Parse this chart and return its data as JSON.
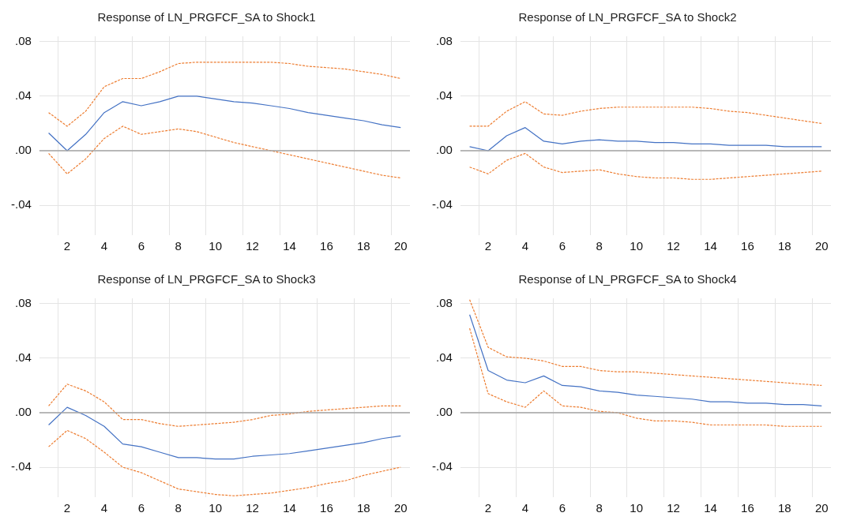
{
  "chart_data": [
    {
      "type": "line",
      "title": "Response of LN_PRGFCF_SA to Shock1",
      "categories": [
        null,
        "2",
        null,
        "4",
        null,
        "6",
        null,
        "8",
        null,
        "10",
        null,
        "12",
        null,
        "14",
        null,
        "16",
        null,
        "18",
        null,
        "20"
      ],
      "ylim": [
        -0.062,
        0.084
      ],
      "yticks": [
        {
          "value": -0.04,
          "label": "-.04"
        },
        {
          "value": 0,
          "label": ".00"
        },
        {
          "value": 0.04,
          "label": ".04"
        },
        {
          "value": 0.08,
          "label": ".08"
        }
      ],
      "grid": true,
      "legend": false,
      "marker": "none",
      "ref_lines": [
        {
          "axis": "y",
          "value": 0,
          "color": "#a6a6a6"
        }
      ],
      "series": [
        {
          "color": "#4472c4",
          "line_style": "solid",
          "values": [
            0.013,
            0.0,
            0.012,
            0.028,
            0.036,
            0.033,
            0.036,
            0.04,
            0.04,
            0.038,
            0.036,
            0.035,
            0.033,
            0.031,
            0.028,
            0.026,
            0.024,
            0.022,
            0.019,
            0.017
          ]
        },
        {
          "color": "#ed7d31",
          "line_style": "dashed",
          "values": [
            0.028,
            0.018,
            0.029,
            0.047,
            0.053,
            0.053,
            0.058,
            0.064,
            0.065,
            0.065,
            0.065,
            0.065,
            0.065,
            0.064,
            0.062,
            0.061,
            0.06,
            0.058,
            0.056,
            0.053
          ]
        },
        {
          "color": "#ed7d31",
          "line_style": "dashed",
          "values": [
            -0.002,
            -0.017,
            -0.006,
            0.009,
            0.018,
            0.012,
            0.014,
            0.016,
            0.014,
            0.01,
            0.006,
            0.003,
            0.0,
            -0.003,
            -0.006,
            -0.009,
            -0.012,
            -0.015,
            -0.018,
            -0.02
          ]
        }
      ]
    },
    {
      "type": "line",
      "title": "Response of LN_PRGFCF_SA to Shock2",
      "categories": [
        null,
        "2",
        null,
        "4",
        null,
        "6",
        null,
        "8",
        null,
        "10",
        null,
        "12",
        null,
        "14",
        null,
        "16",
        null,
        "18",
        null,
        "20"
      ],
      "ylim": [
        -0.062,
        0.084
      ],
      "yticks": [
        {
          "value": -0.04,
          "label": "-.04"
        },
        {
          "value": 0,
          "label": ".00"
        },
        {
          "value": 0.04,
          "label": ".04"
        },
        {
          "value": 0.08,
          "label": ".08"
        }
      ],
      "grid": true,
      "legend": false,
      "marker": "none",
      "ref_lines": [
        {
          "axis": "y",
          "value": 0,
          "color": "#a6a6a6"
        }
      ],
      "series": [
        {
          "color": "#4472c4",
          "line_style": "solid",
          "values": [
            0.003,
            0.0,
            0.011,
            0.017,
            0.007,
            0.005,
            0.007,
            0.008,
            0.007,
            0.007,
            0.006,
            0.006,
            0.005,
            0.005,
            0.004,
            0.004,
            0.004,
            0.003,
            0.003,
            0.003
          ]
        },
        {
          "color": "#ed7d31",
          "line_style": "dashed",
          "values": [
            0.018,
            0.018,
            0.029,
            0.036,
            0.027,
            0.026,
            0.029,
            0.031,
            0.032,
            0.032,
            0.032,
            0.032,
            0.032,
            0.031,
            0.029,
            0.028,
            0.026,
            0.024,
            0.022,
            0.02
          ]
        },
        {
          "color": "#ed7d31",
          "line_style": "dashed",
          "values": [
            -0.012,
            -0.017,
            -0.007,
            -0.002,
            -0.012,
            -0.016,
            -0.015,
            -0.014,
            -0.017,
            -0.019,
            -0.02,
            -0.02,
            -0.021,
            -0.021,
            -0.02,
            -0.019,
            -0.018,
            -0.017,
            -0.016,
            -0.015
          ]
        }
      ]
    },
    {
      "type": "line",
      "title": "Response of LN_PRGFCF_SA to Shock3",
      "categories": [
        null,
        "2",
        null,
        "4",
        null,
        "6",
        null,
        "8",
        null,
        "10",
        null,
        "12",
        null,
        "14",
        null,
        "16",
        null,
        "18",
        null,
        "20"
      ],
      "ylim": [
        -0.062,
        0.084
      ],
      "yticks": [
        {
          "value": -0.04,
          "label": "-.04"
        },
        {
          "value": 0,
          "label": ".00"
        },
        {
          "value": 0.04,
          "label": ".04"
        },
        {
          "value": 0.08,
          "label": ".08"
        }
      ],
      "grid": true,
      "legend": false,
      "marker": "none",
      "ref_lines": [
        {
          "axis": "y",
          "value": 0,
          "color": "#a6a6a6"
        }
      ],
      "series": [
        {
          "color": "#4472c4",
          "line_style": "solid",
          "values": [
            -0.009,
            0.004,
            -0.002,
            -0.01,
            -0.023,
            -0.025,
            -0.029,
            -0.033,
            -0.033,
            -0.034,
            -0.034,
            -0.032,
            -0.031,
            -0.03,
            -0.028,
            -0.026,
            -0.024,
            -0.022,
            -0.019,
            -0.017
          ]
        },
        {
          "color": "#ed7d31",
          "line_style": "dashed",
          "values": [
            0.005,
            0.021,
            0.016,
            0.008,
            -0.005,
            -0.005,
            -0.008,
            -0.01,
            -0.009,
            -0.008,
            -0.007,
            -0.005,
            -0.002,
            -0.001,
            0.001,
            0.002,
            0.003,
            0.004,
            0.005,
            0.005
          ]
        },
        {
          "color": "#ed7d31",
          "line_style": "dashed",
          "values": [
            -0.025,
            -0.013,
            -0.019,
            -0.029,
            -0.04,
            -0.044,
            -0.05,
            -0.056,
            -0.058,
            -0.06,
            -0.061,
            -0.06,
            -0.059,
            -0.057,
            -0.055,
            -0.052,
            -0.05,
            -0.046,
            -0.043,
            -0.04
          ]
        }
      ]
    },
    {
      "type": "line",
      "title": "Response of LN_PRGFCF_SA to Shock4",
      "categories": [
        null,
        "2",
        null,
        "4",
        null,
        "6",
        null,
        "8",
        null,
        "10",
        null,
        "12",
        null,
        "14",
        null,
        "16",
        null,
        "18",
        null,
        "20"
      ],
      "ylim": [
        -0.062,
        0.084
      ],
      "yticks": [
        {
          "value": -0.04,
          "label": "-.04"
        },
        {
          "value": 0,
          "label": ".00"
        },
        {
          "value": 0.04,
          "label": ".04"
        },
        {
          "value": 0.08,
          "label": ".08"
        }
      ],
      "grid": true,
      "legend": false,
      "marker": "none",
      "ref_lines": [
        {
          "axis": "y",
          "value": 0,
          "color": "#a6a6a6"
        }
      ],
      "series": [
        {
          "color": "#4472c4",
          "line_style": "solid",
          "values": [
            0.072,
            0.031,
            0.024,
            0.022,
            0.027,
            0.02,
            0.019,
            0.016,
            0.015,
            0.013,
            0.012,
            0.011,
            0.01,
            0.008,
            0.008,
            0.007,
            0.007,
            0.006,
            0.006,
            0.005
          ]
        },
        {
          "color": "#ed7d31",
          "line_style": "dashed",
          "values": [
            0.083,
            0.048,
            0.041,
            0.04,
            0.038,
            0.034,
            0.034,
            0.031,
            0.03,
            0.03,
            0.029,
            0.028,
            0.027,
            0.026,
            0.025,
            0.024,
            0.023,
            0.022,
            0.021,
            0.02
          ]
        },
        {
          "color": "#ed7d31",
          "line_style": "dashed",
          "values": [
            0.062,
            0.014,
            0.008,
            0.004,
            0.016,
            0.005,
            0.004,
            0.001,
            0.0,
            -0.004,
            -0.006,
            -0.006,
            -0.007,
            -0.009,
            -0.009,
            -0.009,
            -0.009,
            -0.01,
            -0.01,
            -0.01
          ]
        }
      ]
    }
  ]
}
